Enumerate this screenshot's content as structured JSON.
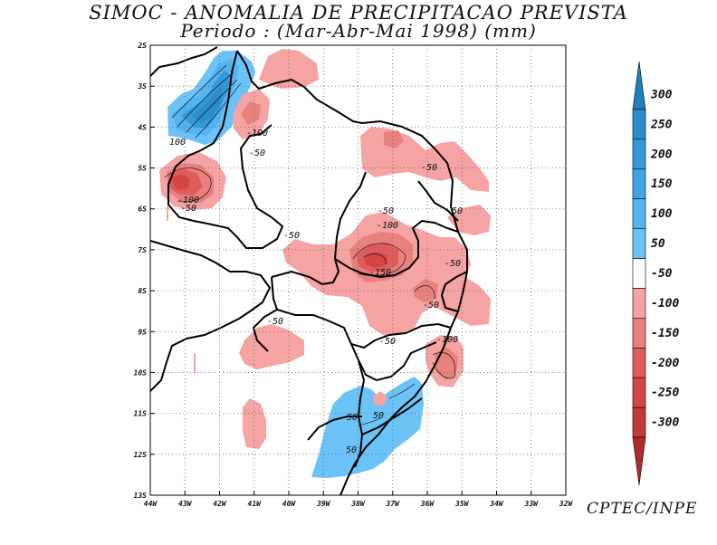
{
  "title": {
    "line1": "SIMOC -  ANOMALIA DE PRECIPITACAO PREVISTA",
    "line2": "Periodo : (Mar-Abr-Mai 1998) (mm)"
  },
  "credit": "CPTEC/INPE",
  "axes": {
    "lat_labels": [
      "2S",
      "3S",
      "4S",
      "5S",
      "6S",
      "7S",
      "8S",
      "9S",
      "10S",
      "11S",
      "12S",
      "13S"
    ],
    "lon_labels": [
      "44W",
      "43W",
      "42W",
      "41W",
      "40W",
      "39W",
      "38W",
      "37W",
      "36W",
      "35W",
      "34W",
      "33W",
      "32W"
    ]
  },
  "colorbar": {
    "labels": [
      "300",
      "250",
      "200",
      "150",
      "100",
      "50",
      "-50",
      "-100",
      "-150",
      "-200",
      "-250",
      "-300"
    ],
    "colors": [
      "#1e7fbc",
      "#2a8ccb",
      "#3399d9",
      "#3fa6e6",
      "#54b4f0",
      "#6cc3f7",
      "#ffffff",
      "#f5a3a3",
      "#e88080",
      "#e05c5c",
      "#d44646",
      "#c23a3a",
      "#b02c2c"
    ]
  },
  "contour_labels": [
    "-100",
    "-50",
    "100",
    "-100",
    "-50",
    "-50",
    "-50",
    "-50",
    "-50",
    "-100",
    "-150",
    "-50",
    "-50",
    "-50",
    "-50",
    "-100",
    "-50",
    "50",
    "50"
  ],
  "chart_data": {
    "type": "heatmap",
    "title": "SIMOC -  ANOMALIA DE PRECIPITACAO PREVISTA",
    "subtitle": "Periodo : (Mar-Abr-Mai 1998) (mm)",
    "variable": "precipitation anomaly (mm)",
    "x_range": [
      "44W",
      "32W"
    ],
    "y_range": [
      "2S",
      "13S"
    ],
    "levels": [
      -300,
      -250,
      -200,
      -150,
      -100,
      -50,
      50,
      100,
      150,
      200,
      250,
      300
    ]
  }
}
